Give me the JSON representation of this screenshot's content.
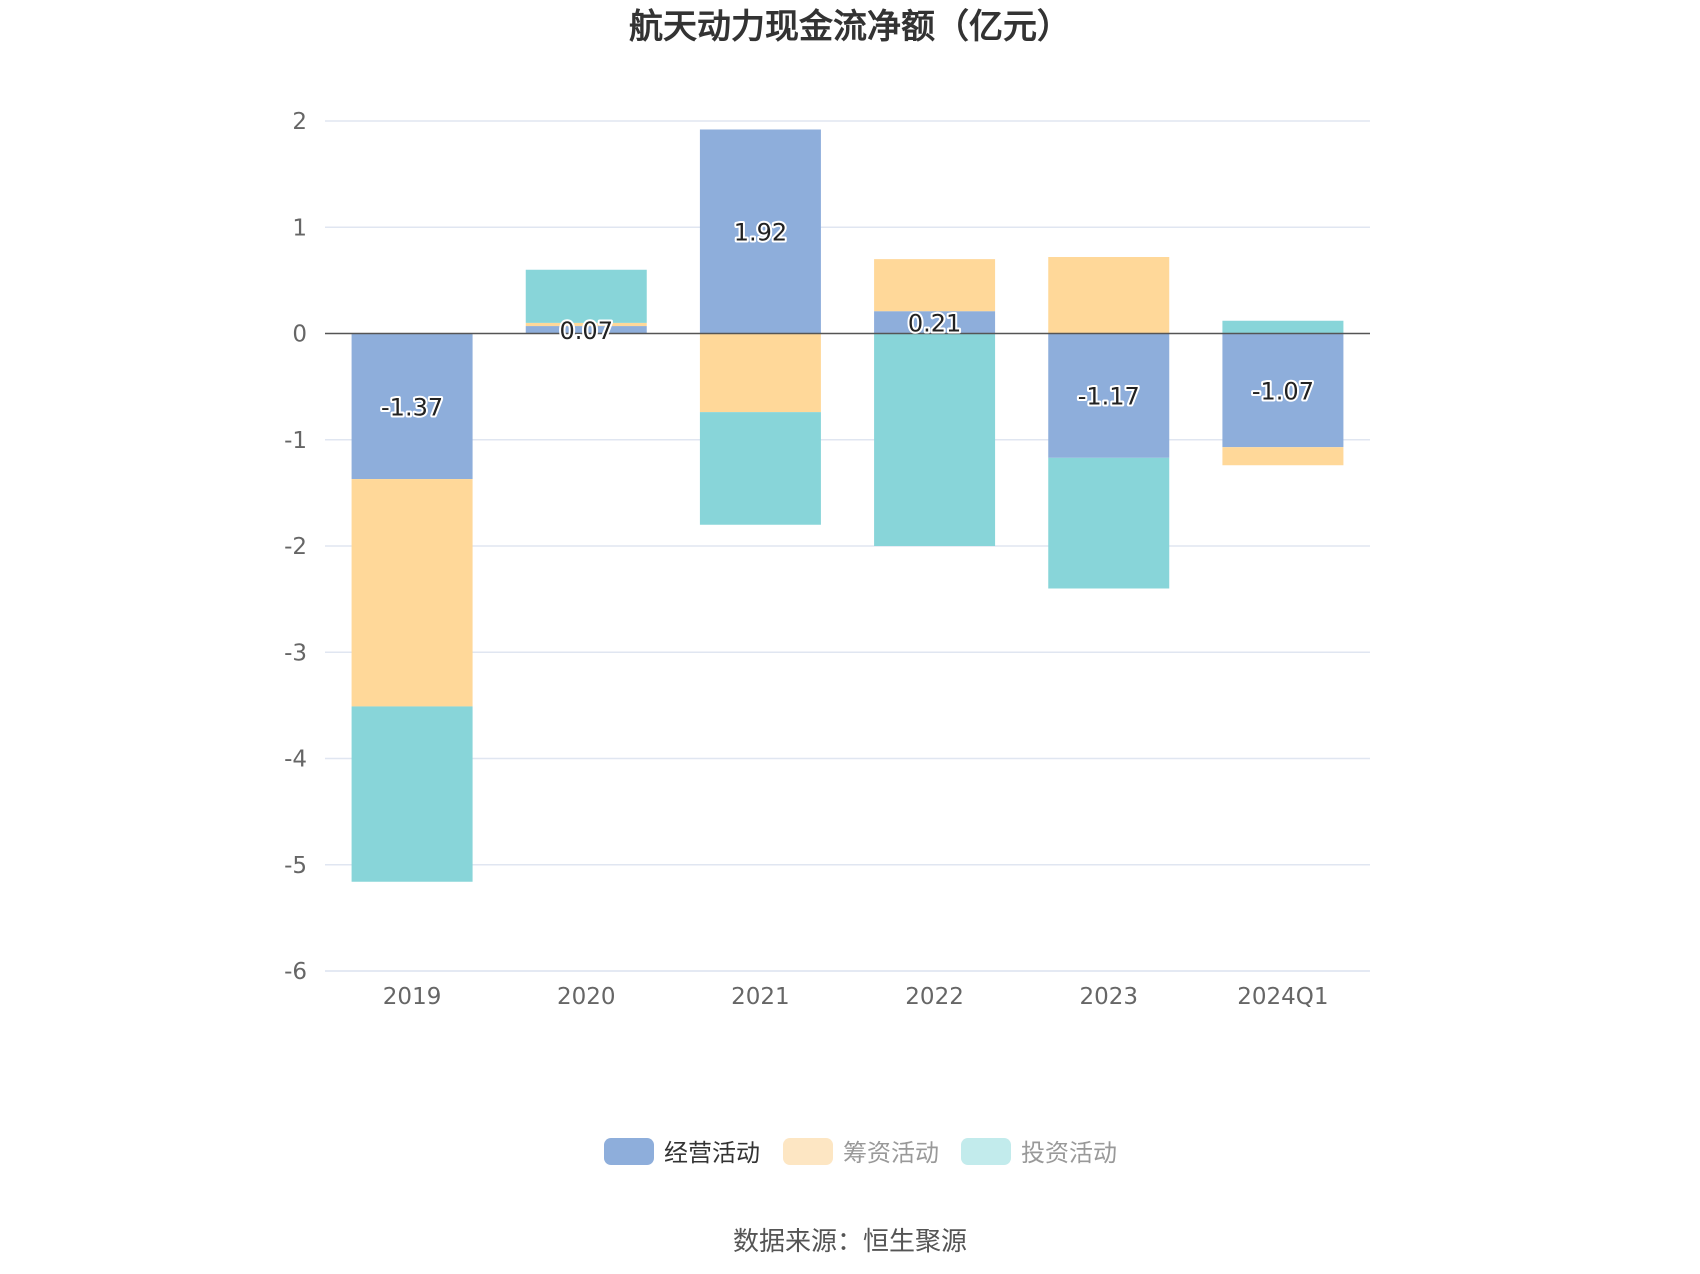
{
  "chart_data": {
    "type": "bar",
    "stacked": true,
    "title": "航天动力现金流净额（亿元）",
    "categories": [
      "2019",
      "2020",
      "2021",
      "2022",
      "2023",
      "2024Q1"
    ],
    "series": [
      {
        "name": "经营活动",
        "values": [
          -1.37,
          0.07,
          1.92,
          0.21,
          -1.17,
          -1.07
        ],
        "color": "#8eaedb",
        "show_labels": true
      },
      {
        "name": "筹资活动",
        "values": [
          -2.14,
          0.03,
          -0.74,
          0.49,
          0.72,
          -0.17
        ],
        "color": "#ffd899",
        "show_labels": false
      },
      {
        "name": "投资活动",
        "values": [
          -1.65,
          0.5,
          -1.06,
          -2.0,
          -1.23,
          0.12
        ],
        "color": "#88d5d9",
        "show_labels": false
      }
    ],
    "ylim": [
      -6,
      2
    ],
    "yticks": [
      2,
      1,
      0,
      -1,
      -2,
      -3,
      -4,
      -5,
      -6
    ],
    "grid": true,
    "legend_position": "bottom",
    "legend_inactive_colors": [
      "#8eaedb",
      "#fde6c3",
      "#c2ebec"
    ],
    "legend_text_colors": [
      "#333333",
      "#999999",
      "#999999"
    ]
  },
  "source": "数据来源：恒生聚源"
}
